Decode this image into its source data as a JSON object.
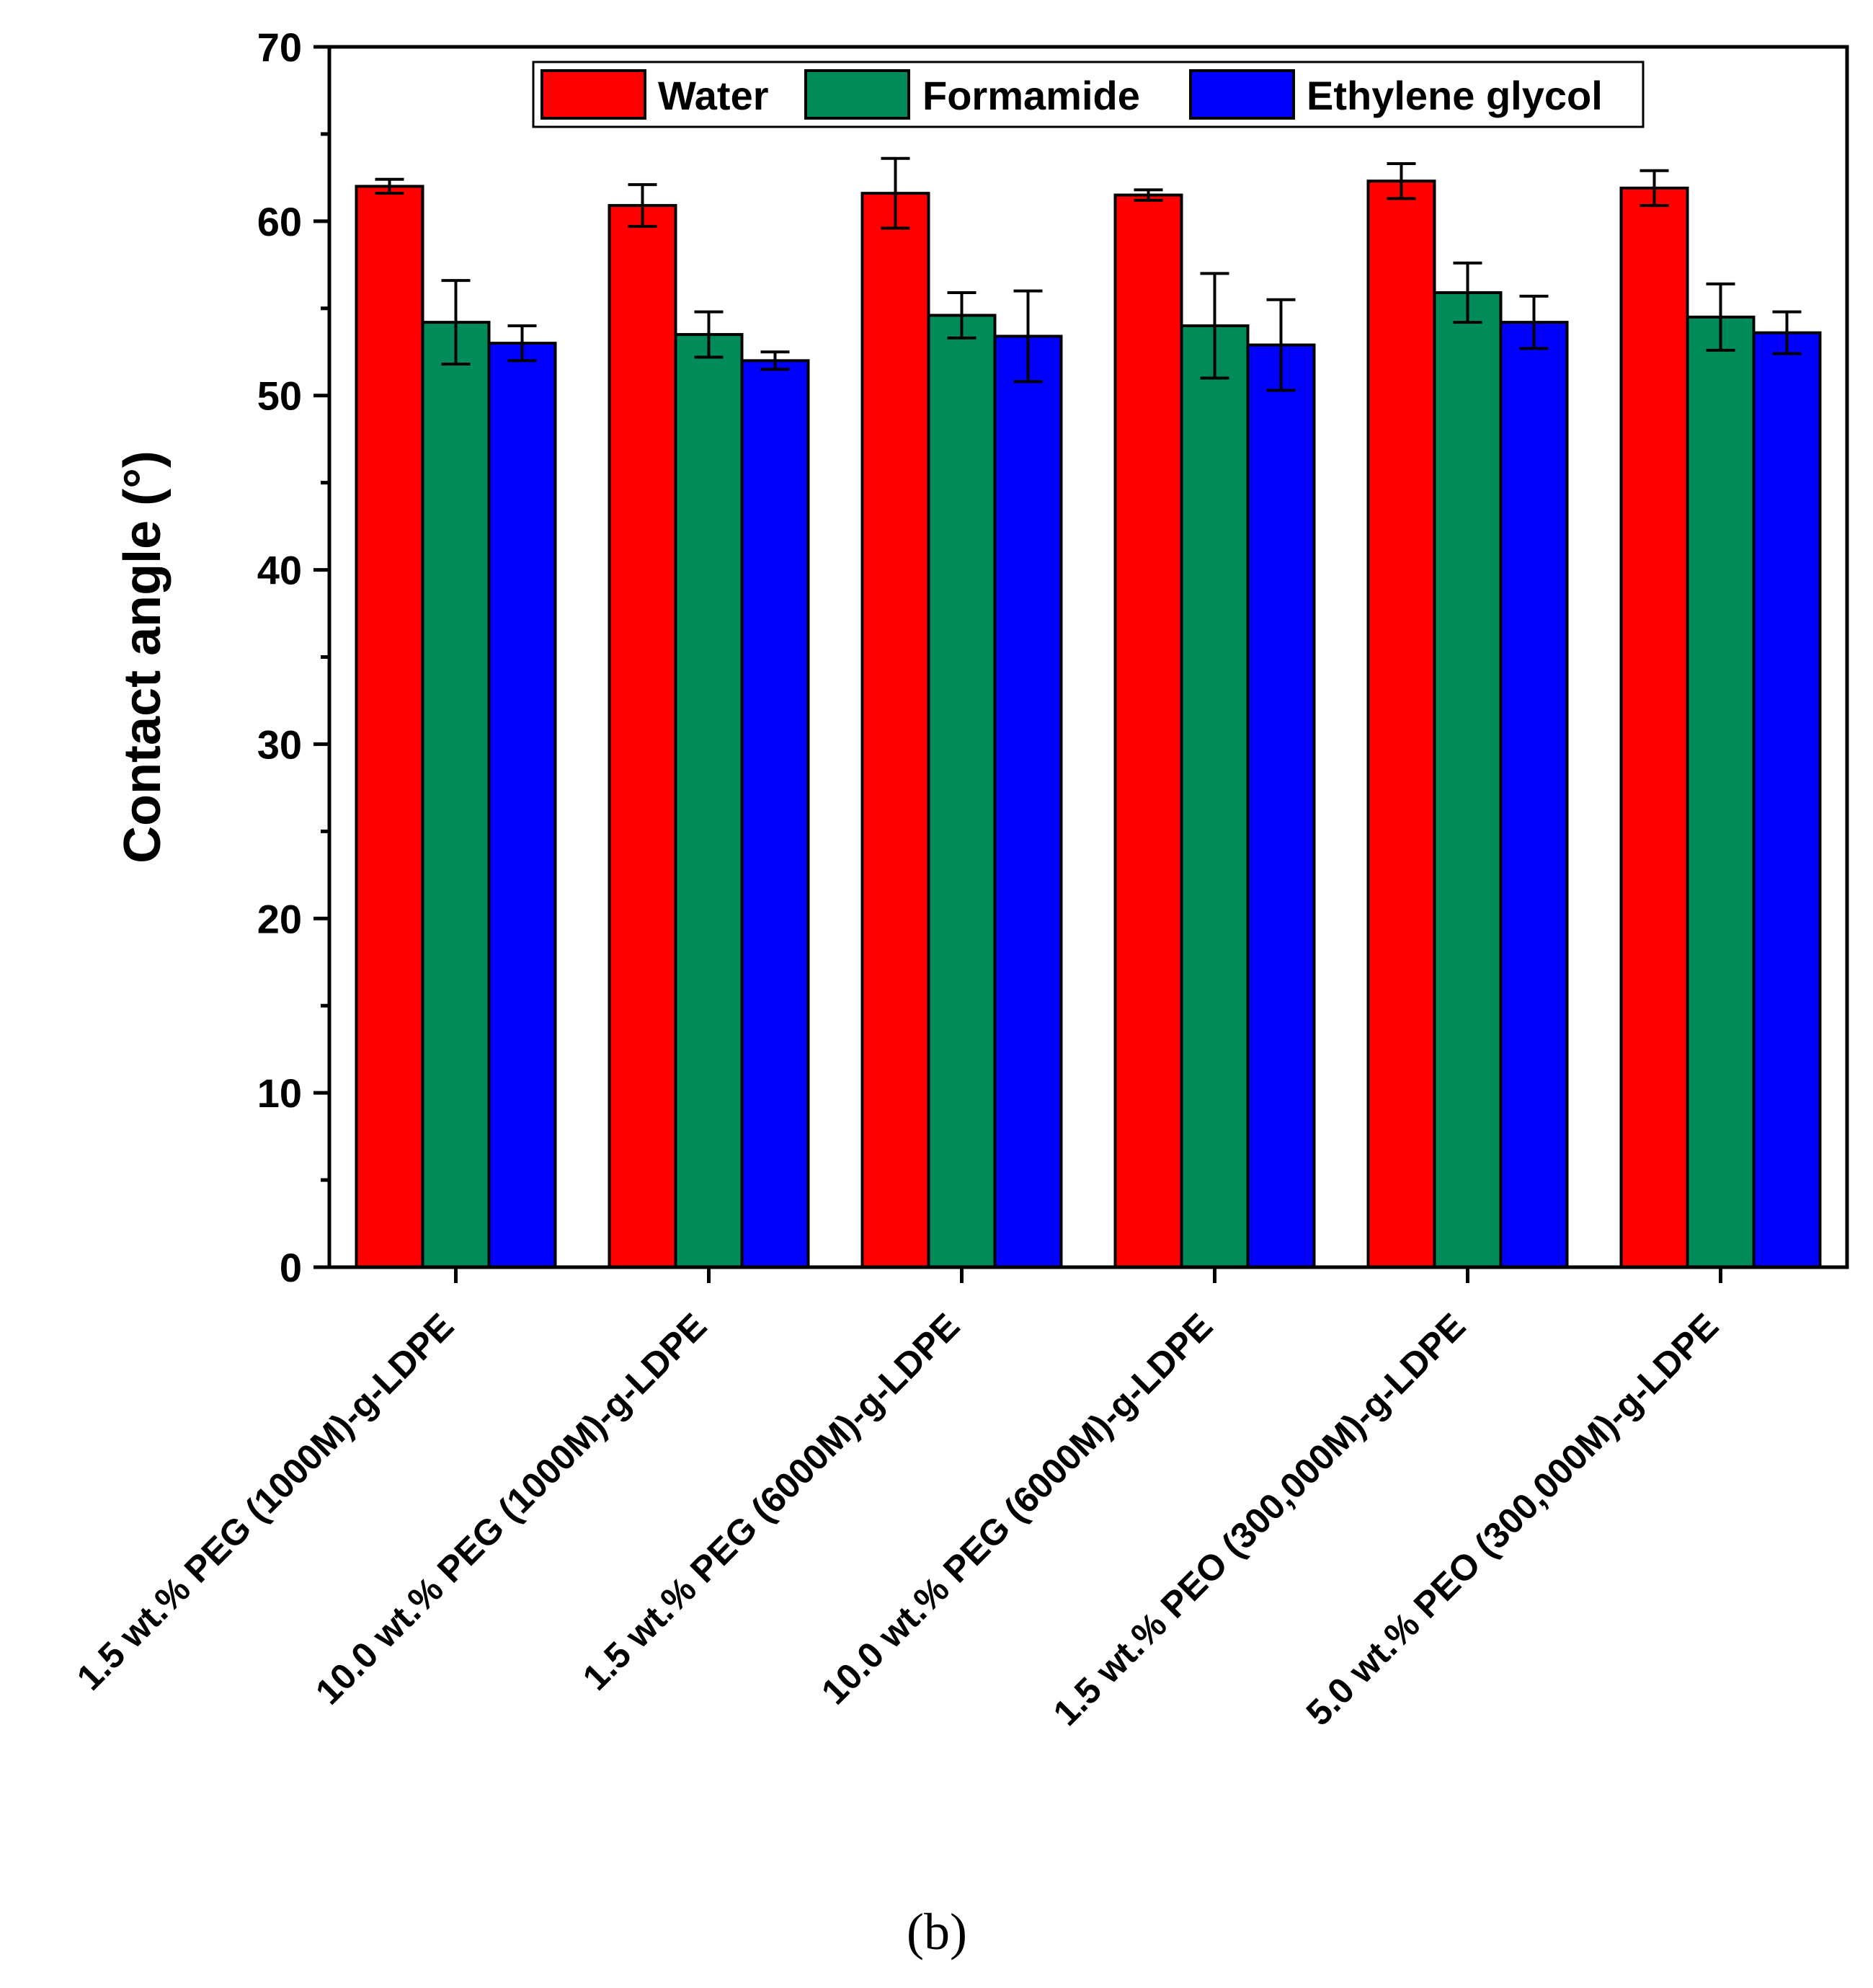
{
  "chart_data": {
    "type": "bar",
    "ylabel": "Contact angle (°)",
    "xlabel": "",
    "ylim": [
      0,
      70
    ],
    "yticks": [
      "0",
      "10",
      "20",
      "30",
      "40",
      "50",
      "60",
      "70"
    ],
    "panel_label": "(b)",
    "legend_position": "top-right",
    "categories": [
      "1.5 wt.% PEG (1000M)-g-LDPE",
      "10.0 wt.% PEG (1000M)-g-LDPE",
      "1.5 wt.% PEG (6000M)-g-LDPE",
      "10.0 wt.% PEG (6000M)-g-LDPE",
      "1.5 wt.% PEO (300,000M)-g-LDPE",
      "5.0 wt.% PEO (300,000M)-g-LDPE"
    ],
    "series": [
      {
        "name": "Water",
        "color": "#ff0000",
        "values": [
          62.0,
          60.9,
          61.6,
          61.5,
          62.3,
          61.9
        ],
        "errors": [
          0.4,
          1.2,
          2.0,
          0.3,
          1.0,
          1.0
        ]
      },
      {
        "name": "Formamide",
        "color": "#008c5a",
        "values": [
          54.2,
          53.5,
          54.6,
          54.0,
          55.9,
          54.5
        ],
        "errors": [
          2.4,
          1.3,
          1.3,
          3.0,
          1.7,
          1.9
        ]
      },
      {
        "name": "Ethylene glycol",
        "color": "#0000ff",
        "values": [
          53.0,
          52.0,
          53.4,
          52.9,
          54.2,
          53.6
        ],
        "errors": [
          1.0,
          0.5,
          2.6,
          2.6,
          1.5,
          1.2
        ]
      }
    ]
  }
}
